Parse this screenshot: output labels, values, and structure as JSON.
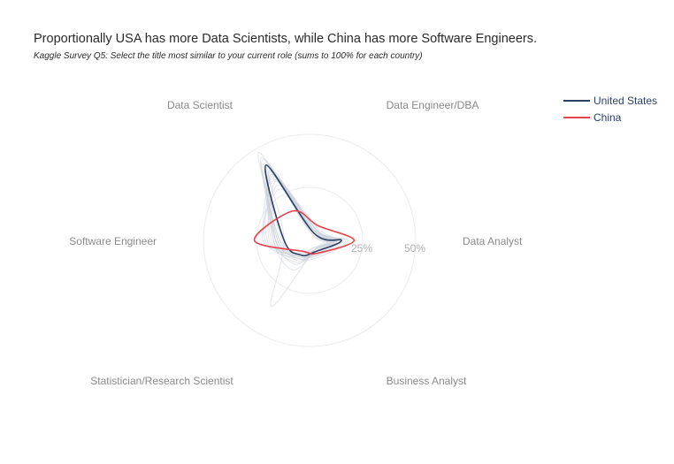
{
  "title": "Proportionally USA has more Data Scientists, while China has more Software Engineers.",
  "subtitle": "Kaggle Survey Q5: Select the title most similar to your current role (sums to 100% for each country)",
  "chart_data": {
    "type": "radar",
    "axes": [
      "Data Scientist",
      "Data Engineer/DBA",
      "Data Analyst",
      "Business Analyst",
      "Statistician/Research Scientist",
      "Software Engineer"
    ],
    "radial_ticks": [
      "25%",
      "50%"
    ],
    "radial_tick_values": [
      25,
      50
    ],
    "rmax": 50,
    "series": [
      {
        "name": "United States",
        "color": "#2b3f63",
        "values": [
          41,
          4,
          15,
          6,
          8,
          12
        ]
      },
      {
        "name": "China",
        "color": "#e8434d",
        "values": [
          16,
          8,
          21,
          7,
          6,
          26
        ]
      }
    ],
    "background_series": [
      [
        36,
        4,
        12,
        5,
        9,
        16
      ],
      [
        40,
        5,
        13,
        6,
        8,
        13
      ],
      [
        44,
        6,
        11,
        4,
        7,
        14
      ],
      [
        38,
        3,
        15,
        7,
        10,
        15
      ],
      [
        35,
        6,
        11,
        6,
        12,
        18
      ],
      [
        42,
        4,
        10,
        5,
        9,
        16
      ],
      [
        33,
        5,
        14,
        8,
        8,
        20
      ],
      [
        48,
        4,
        12,
        5,
        7,
        12
      ],
      [
        37,
        7,
        13,
        6,
        11,
        17
      ],
      [
        30,
        4,
        16,
        7,
        9,
        19
      ],
      [
        39,
        5,
        9,
        5,
        13,
        16
      ],
      [
        34,
        6,
        15,
        6,
        10,
        21
      ],
      [
        41,
        3,
        11,
        5,
        8,
        15
      ],
      [
        28,
        5,
        17,
        8,
        9,
        22
      ],
      [
        36,
        6,
        12,
        6,
        16,
        17
      ],
      [
        45,
        4,
        13,
        4,
        7,
        14
      ],
      [
        32,
        5,
        18,
        9,
        10,
        16
      ],
      [
        38,
        6,
        10,
        5,
        36,
        12
      ]
    ],
    "legend_position": "top-right"
  }
}
